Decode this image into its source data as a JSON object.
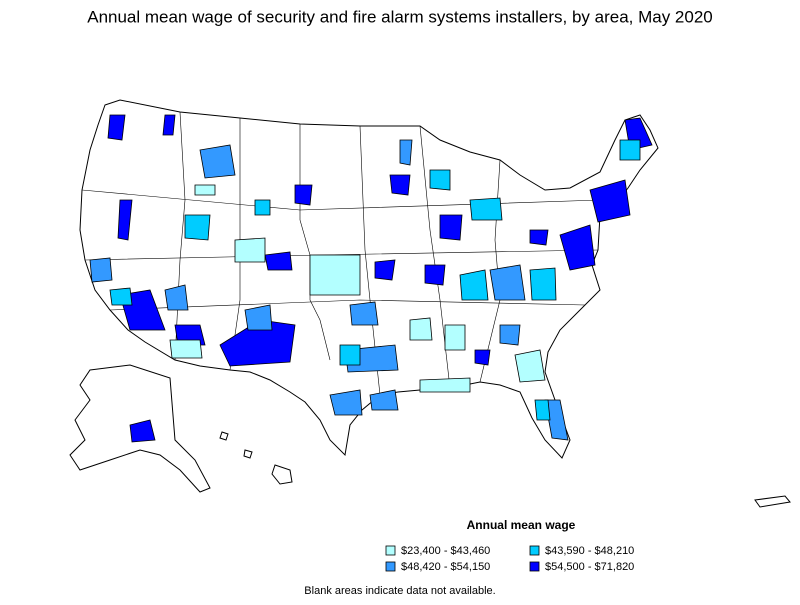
{
  "title": "Annual mean wage of security and fire alarm systems installers, by area, May 2020",
  "legend": {
    "title": "Annual mean wage",
    "items": [
      {
        "label": "$23,400 - $43,460",
        "color": "#b3ffff"
      },
      {
        "label": "$43,590 - $48,210",
        "color": "#00ccff"
      },
      {
        "label": "$48,420 - $54,150",
        "color": "#3399ff"
      },
      {
        "label": "$54,500 - $71,820",
        "color": "#0000ff"
      }
    ]
  },
  "note": "Blank areas indicate data not available."
}
